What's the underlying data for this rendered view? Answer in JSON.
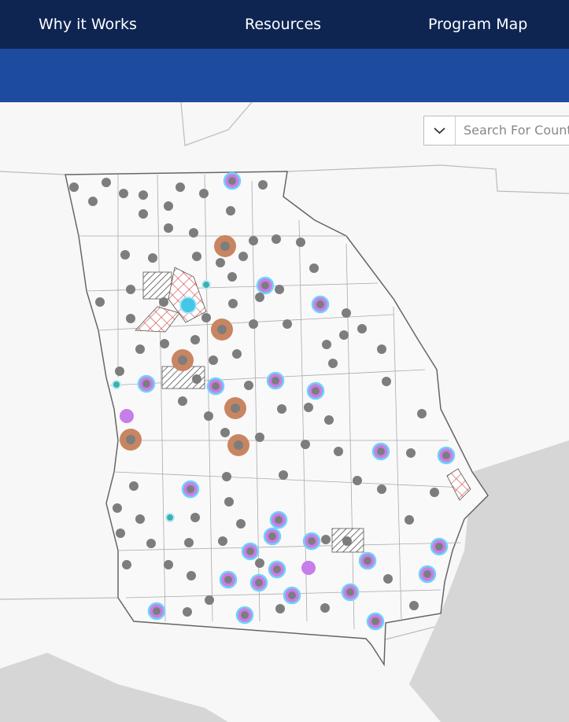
{
  "nav": {
    "items": [
      "Why it Works",
      "Resources",
      "Program Map"
    ]
  },
  "search": {
    "placeholder": "Search For Count"
  }
}
